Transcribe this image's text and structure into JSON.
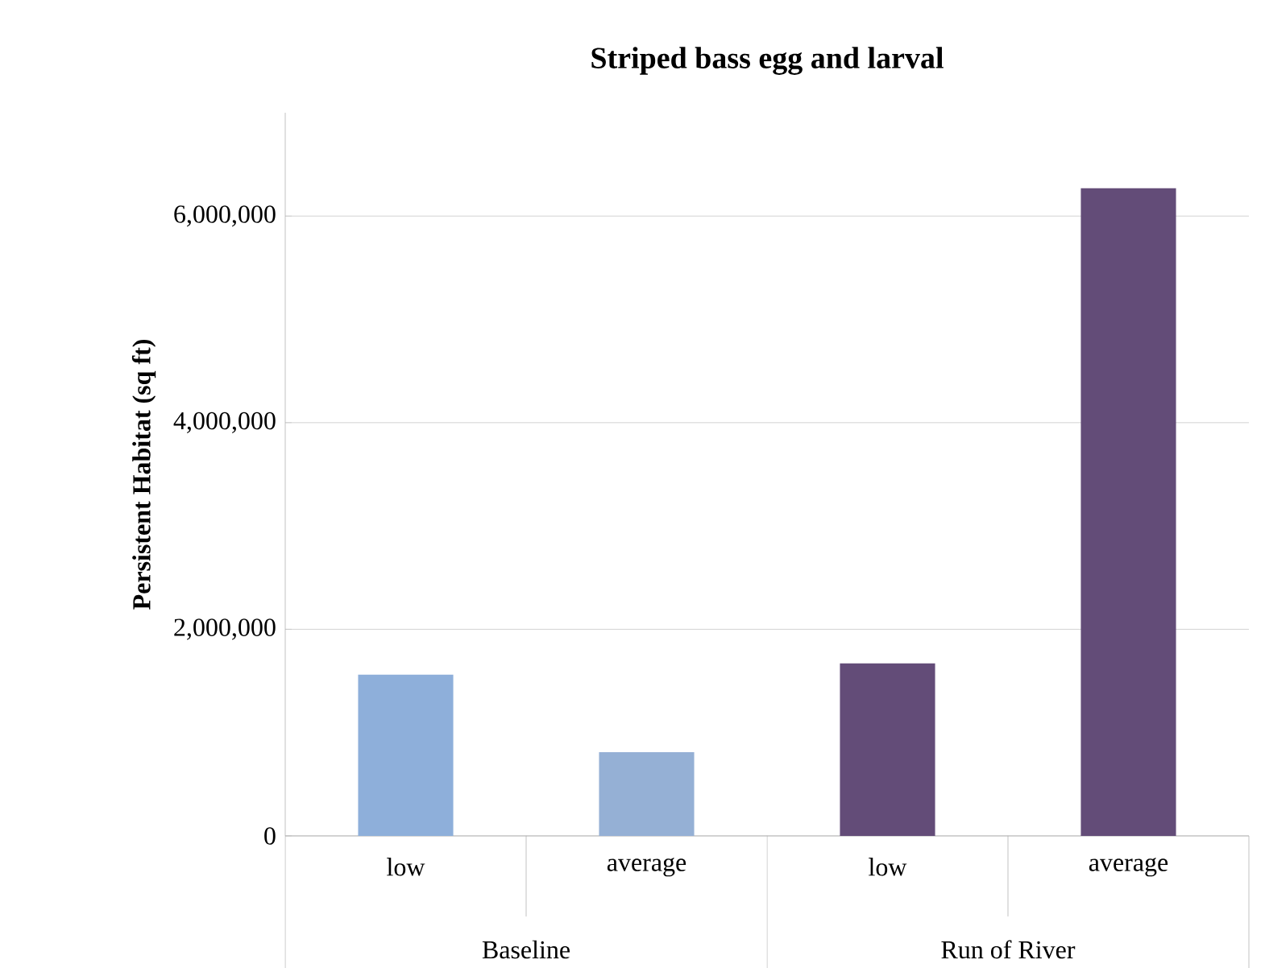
{
  "chart_data": {
    "type": "bar",
    "title": "Striped bass egg and larval",
    "ylabel": "Persistent Habitat (sq ft)",
    "categories": [
      "low",
      "average",
      "low",
      "average"
    ],
    "values": [
      1560000,
      810000,
      1670000,
      6270000
    ],
    "colors": [
      "#8eafda",
      "#95b0d5",
      "#634c78",
      "#634c78"
    ],
    "ylim": [
      0,
      7000000
    ],
    "yticks": [
      0,
      {
        "value": 2000000,
        "label": "2,000,000"
      },
      {
        "value": 4000000,
        "label": "4,000,000"
      },
      {
        "value": 6000000,
        "label": "6,000,000"
      }
    ],
    "grid": "y",
    "annotations": [
      "Baseline",
      "Run of River"
    ]
  }
}
